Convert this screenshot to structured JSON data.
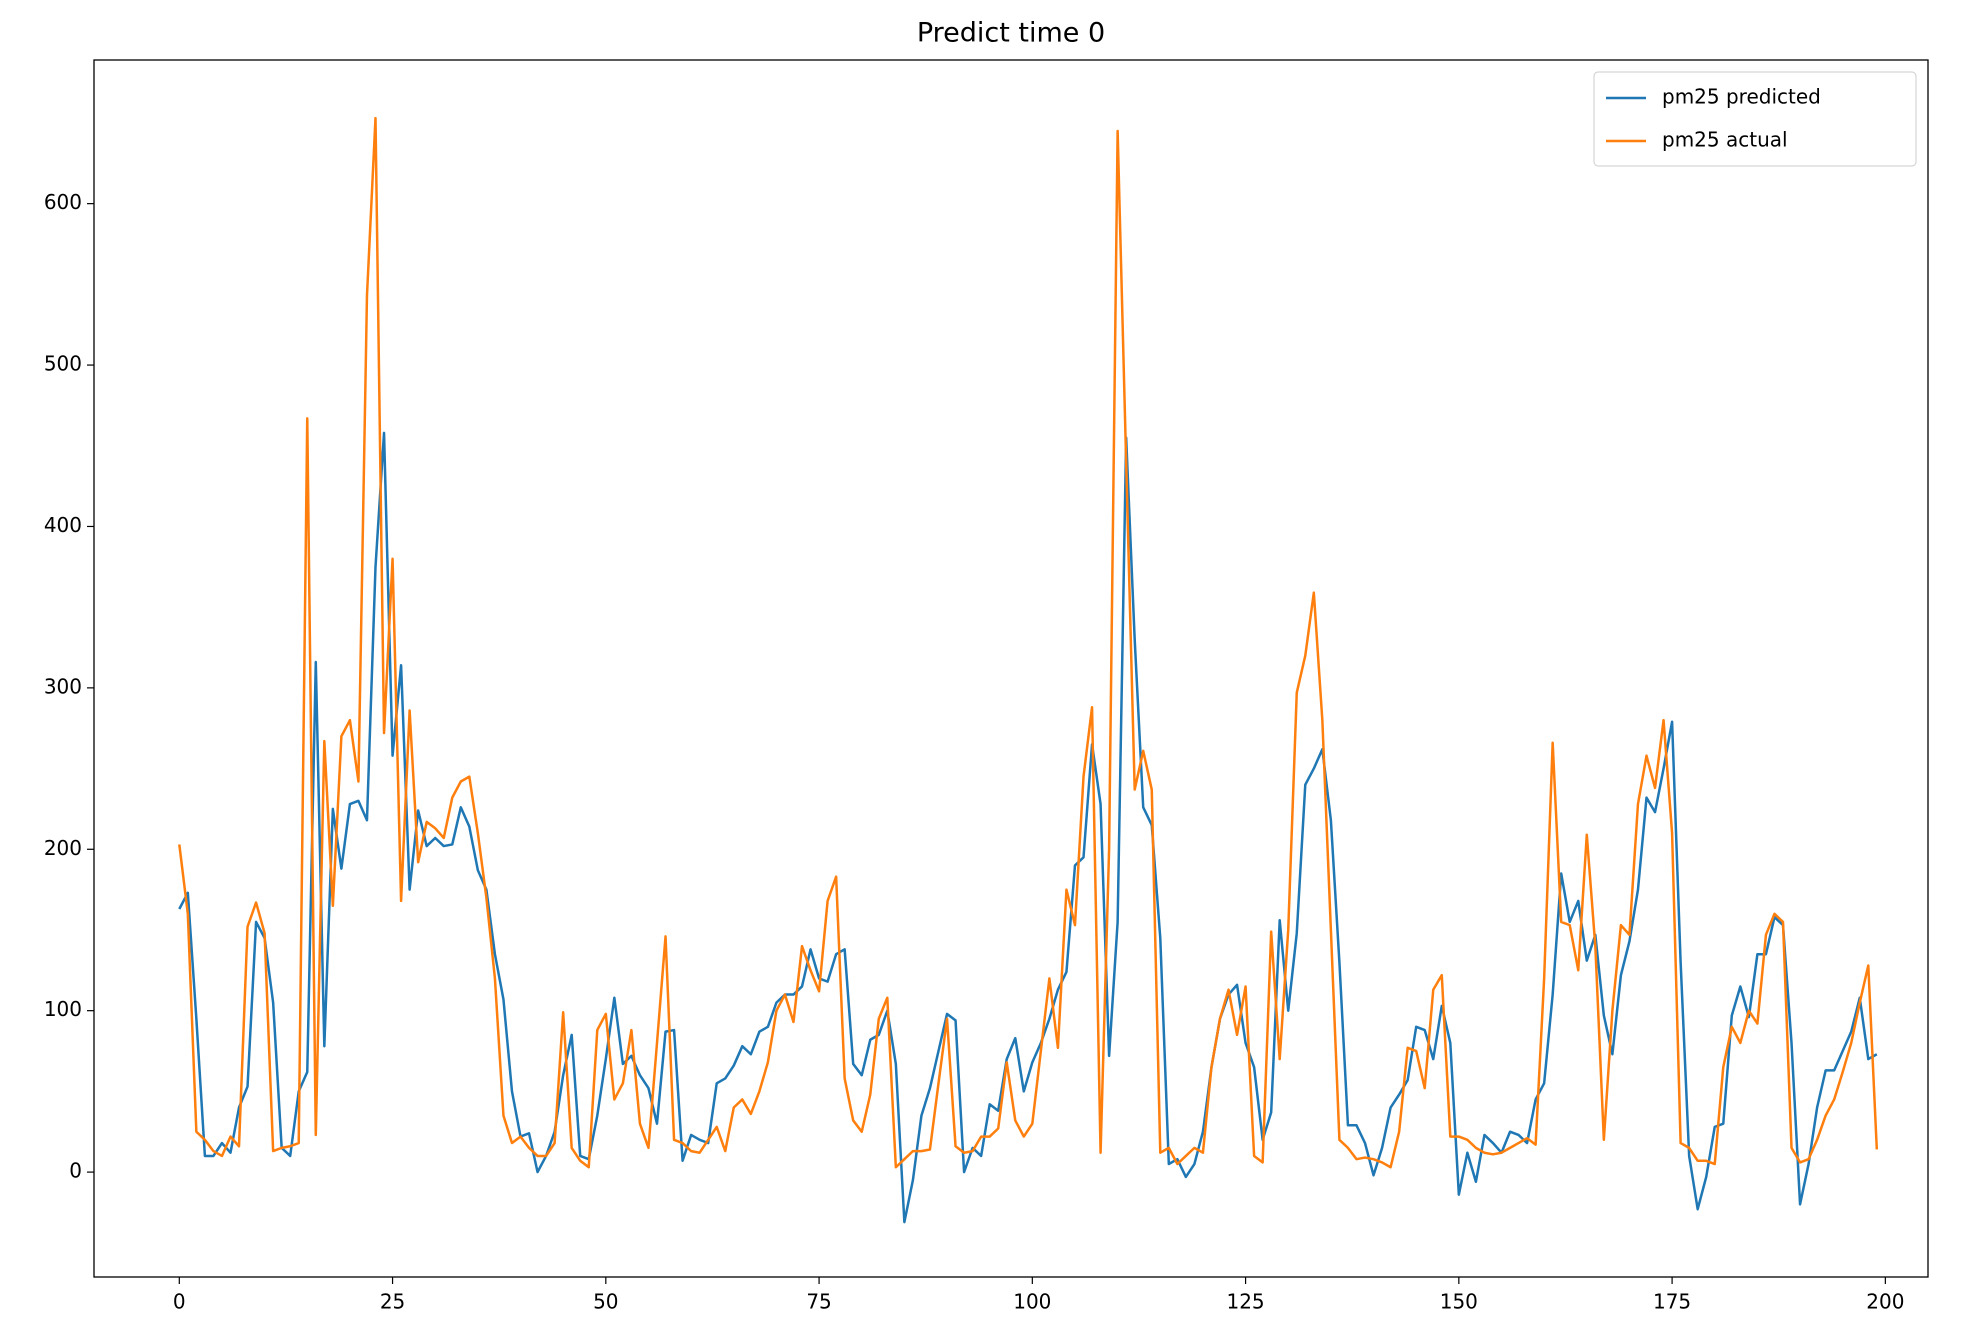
{
  "chart_data": {
    "type": "line",
    "title": "Predict time 0",
    "x": [
      0,
      1,
      2,
      3,
      4,
      5,
      6,
      7,
      8,
      9,
      10,
      11,
      12,
      13,
      14,
      15,
      16,
      17,
      18,
      19,
      20,
      21,
      22,
      23,
      24,
      25,
      26,
      27,
      28,
      29,
      30,
      31,
      32,
      33,
      34,
      35,
      36,
      37,
      38,
      39,
      40,
      41,
      42,
      43,
      44,
      45,
      46,
      47,
      48,
      49,
      50,
      51,
      52,
      53,
      54,
      55,
      56,
      57,
      58,
      59,
      60,
      61,
      62,
      63,
      64,
      65,
      66,
      67,
      68,
      69,
      70,
      71,
      72,
      73,
      74,
      75,
      76,
      77,
      78,
      79,
      80,
      81,
      82,
      83,
      84,
      85,
      86,
      87,
      88,
      89,
      90,
      91,
      92,
      93,
      94,
      95,
      96,
      97,
      98,
      99,
      100,
      101,
      102,
      103,
      104,
      105,
      106,
      107,
      108,
      109,
      110,
      111,
      112,
      113,
      114,
      115,
      116,
      117,
      118,
      119,
      120,
      121,
      122,
      123,
      124,
      125,
      126,
      127,
      128,
      129,
      130,
      131,
      132,
      133,
      134,
      135,
      136,
      137,
      138,
      139,
      140,
      141,
      142,
      143,
      144,
      145,
      146,
      147,
      148,
      149,
      150,
      151,
      152,
      153,
      154,
      155,
      156,
      157,
      158,
      159,
      160,
      161,
      162,
      163,
      164,
      165,
      166,
      167,
      168,
      169,
      170,
      171,
      172,
      173,
      174,
      175,
      176,
      177,
      178,
      179,
      180,
      181,
      182,
      183,
      184,
      185,
      186,
      187,
      188,
      189,
      190,
      191,
      192,
      193,
      194,
      195,
      196,
      197,
      198,
      199
    ],
    "series": [
      {
        "name": "pm25 predicted",
        "color": "#1f77b4",
        "values": [
          163,
          173,
          95,
          10,
          10,
          18,
          12,
          40,
          53,
          155,
          145,
          105,
          15,
          10,
          50,
          62,
          316,
          78,
          225,
          188,
          228,
          230,
          218,
          375,
          458,
          258,
          314,
          175,
          224,
          202,
          207,
          202,
          203,
          226,
          214,
          187,
          175,
          135,
          107,
          50,
          22,
          24,
          0,
          10,
          25,
          60,
          85,
          10,
          8,
          35,
          70,
          108,
          67,
          72,
          60,
          52,
          30,
          87,
          88,
          7,
          23,
          20,
          18,
          55,
          58,
          66,
          78,
          73,
          87,
          90,
          105,
          110,
          110,
          115,
          138,
          120,
          118,
          135,
          138,
          67,
          60,
          82,
          85,
          100,
          67,
          -31,
          -5,
          35,
          52,
          75,
          98,
          94,
          0,
          15,
          10,
          42,
          38,
          70,
          83,
          50,
          68,
          80,
          95,
          113,
          124,
          190,
          195,
          265,
          228,
          72,
          155,
          455,
          330,
          226,
          215,
          145,
          5,
          8,
          -3,
          5,
          25,
          65,
          95,
          110,
          116,
          80,
          65,
          20,
          37,
          156,
          100,
          148,
          240,
          250,
          262,
          218,
          130,
          29,
          29,
          18,
          -2,
          15,
          40,
          48,
          57,
          90,
          88,
          70,
          103,
          80,
          -14,
          12,
          -6,
          23,
          18,
          12,
          25,
          23,
          18,
          45,
          55,
          110,
          185,
          155,
          168,
          131,
          147,
          97,
          73,
          122,
          143,
          175,
          232,
          223,
          250,
          279,
          130,
          10,
          -23,
          -3,
          28,
          30,
          97,
          115,
          96,
          135,
          135,
          158,
          153,
          80,
          -20,
          5,
          40,
          63,
          63,
          75,
          87,
          108,
          70,
          73
        ]
      },
      {
        "name": "pm25 actual",
        "color": "#ff7f0e",
        "values": [
          203,
          160,
          25,
          20,
          13,
          10,
          22,
          16,
          152,
          167,
          148,
          13,
          15,
          16,
          18,
          467,
          23,
          267,
          165,
          270,
          280,
          242,
          543,
          653,
          272,
          380,
          168,
          286,
          192,
          217,
          213,
          207,
          232,
          242,
          245,
          210,
          170,
          120,
          35,
          18,
          22,
          15,
          10,
          10,
          18,
          99,
          15,
          7,
          3,
          88,
          98,
          45,
          55,
          88,
          30,
          15,
          80,
          146,
          20,
          18,
          13,
          12,
          20,
          28,
          13,
          40,
          45,
          36,
          50,
          68,
          100,
          110,
          93,
          140,
          125,
          112,
          168,
          183,
          58,
          32,
          25,
          48,
          95,
          108,
          3,
          8,
          13,
          13,
          14,
          55,
          95,
          16,
          12,
          13,
          22,
          22,
          27,
          68,
          32,
          22,
          30,
          75,
          120,
          77,
          175,
          153,
          245,
          288,
          12,
          200,
          645,
          440,
          237,
          261,
          237,
          12,
          15,
          5,
          10,
          15,
          12,
          65,
          95,
          113,
          85,
          115,
          10,
          6,
          149,
          70,
          150,
          297,
          320,
          359,
          280,
          150,
          20,
          15,
          8,
          9,
          8,
          6,
          3,
          25,
          77,
          75,
          52,
          113,
          122,
          22,
          22,
          20,
          15,
          12,
          11,
          12,
          15,
          18,
          21,
          17,
          120,
          266,
          155,
          153,
          125,
          209,
          140,
          20,
          100,
          153,
          147,
          228,
          258,
          238,
          280,
          210,
          18,
          15,
          7,
          7,
          5,
          65,
          90,
          80,
          100,
          92,
          147,
          160,
          155,
          15,
          6,
          8,
          20,
          35,
          45,
          62,
          80,
          105,
          128,
          14
        ]
      }
    ],
    "xlim": [
      -10,
      205
    ],
    "xticks": [
      0,
      25,
      50,
      75,
      100,
      125,
      150,
      175,
      200
    ],
    "ylim": [
      -65,
      689
    ],
    "yticks": [
      0,
      100,
      200,
      300,
      400,
      500,
      600
    ],
    "legend": "upper right"
  }
}
